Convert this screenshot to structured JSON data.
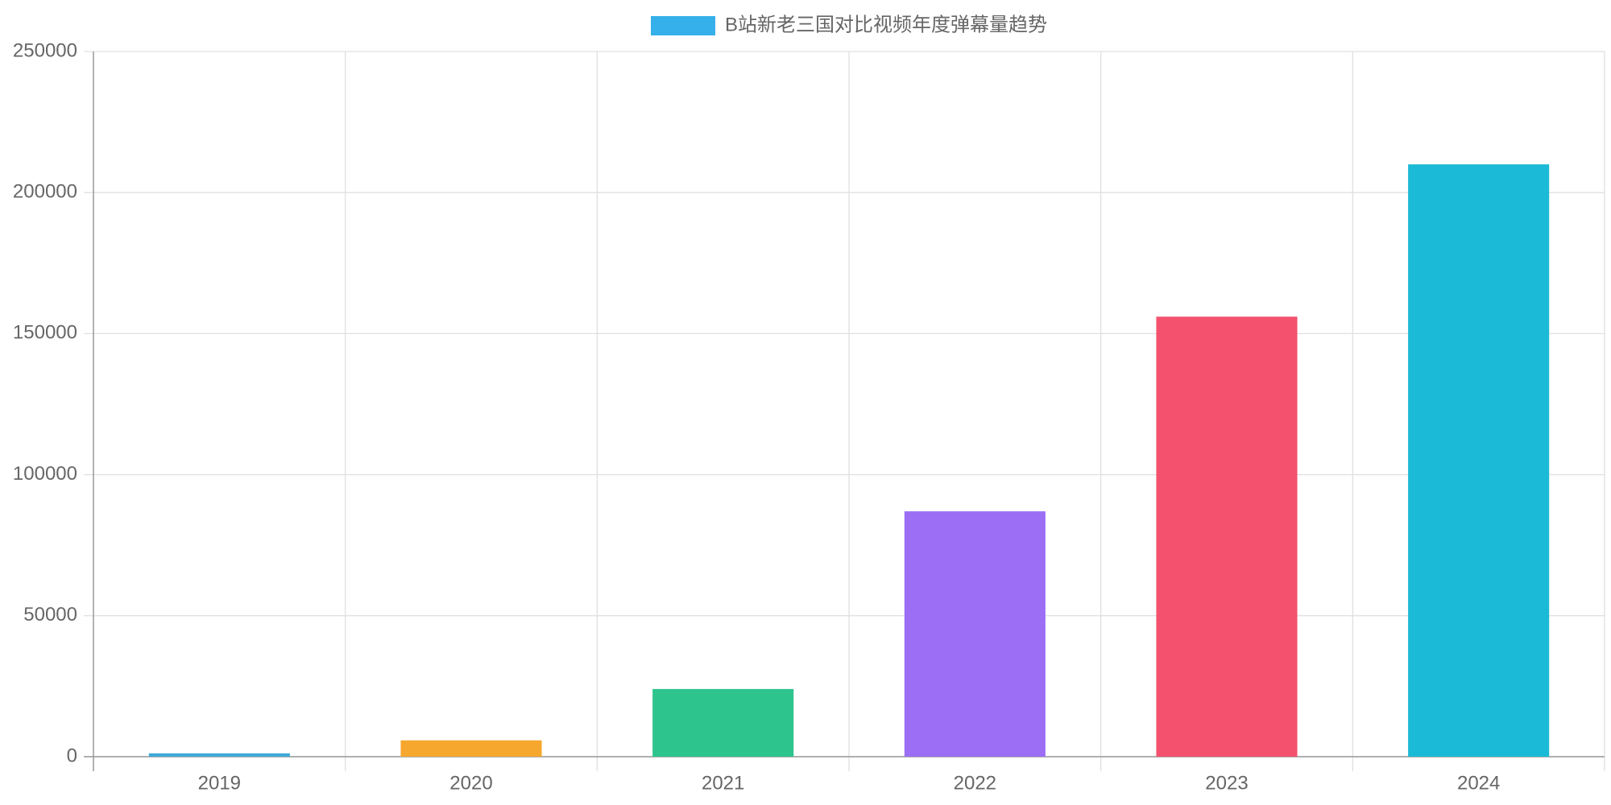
{
  "chart_data": {
    "type": "bar",
    "categories": [
      "2019",
      "2020",
      "2021",
      "2022",
      "2023",
      "2024"
    ],
    "series": [
      {
        "name": "B站新老三国对比视频年度弹幕量趋势",
        "values": [
          1200,
          5800,
          24000,
          87000,
          156000,
          210000
        ],
        "colors": [
          "#3fa9d8",
          "#f6a72e",
          "#2ec48e",
          "#9b6ef5",
          "#f4516e",
          "#1bbad6"
        ]
      }
    ],
    "ylim": [
      0,
      250000
    ],
    "yticks": [
      0,
      50000,
      100000,
      150000,
      200000,
      250000
    ],
    "grid": true,
    "legend": "top"
  }
}
